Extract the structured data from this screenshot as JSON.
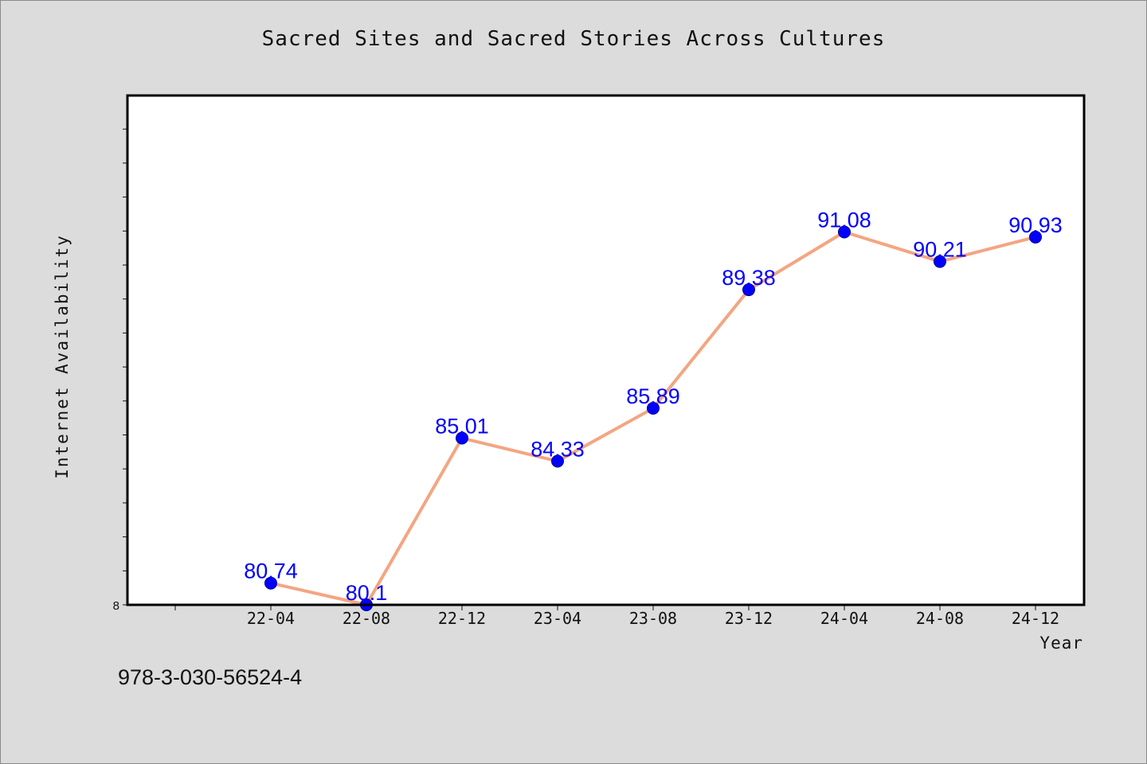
{
  "chart_data": {
    "type": "line",
    "title": "Sacred Sites and Sacred Stories Across Cultures",
    "xlabel": "Year",
    "ylabel": "Internet Availability",
    "categories": [
      "22-04",
      "22-08",
      "22-12",
      "23-04",
      "23-08",
      "23-12",
      "24-04",
      "24-08",
      "24-12"
    ],
    "series": [
      {
        "values": [
          80.74,
          80.1,
          85.01,
          84.33,
          85.89,
          89.38,
          91.08,
          90.21,
          90.93
        ],
        "labels": [
          "80.74",
          "80.1",
          "85.01",
          "84.33",
          "85.89",
          "89.38",
          "91.08",
          "90.21",
          "90.93"
        ]
      }
    ],
    "ylim": [
      80.1,
      95.1
    ],
    "ytick_label": "8",
    "grid": false,
    "line_color": "#f4a582",
    "marker_color": "#0000ff",
    "label_color": "#0000ff"
  },
  "footer": {
    "isbn": "978-3-030-56524-4"
  }
}
